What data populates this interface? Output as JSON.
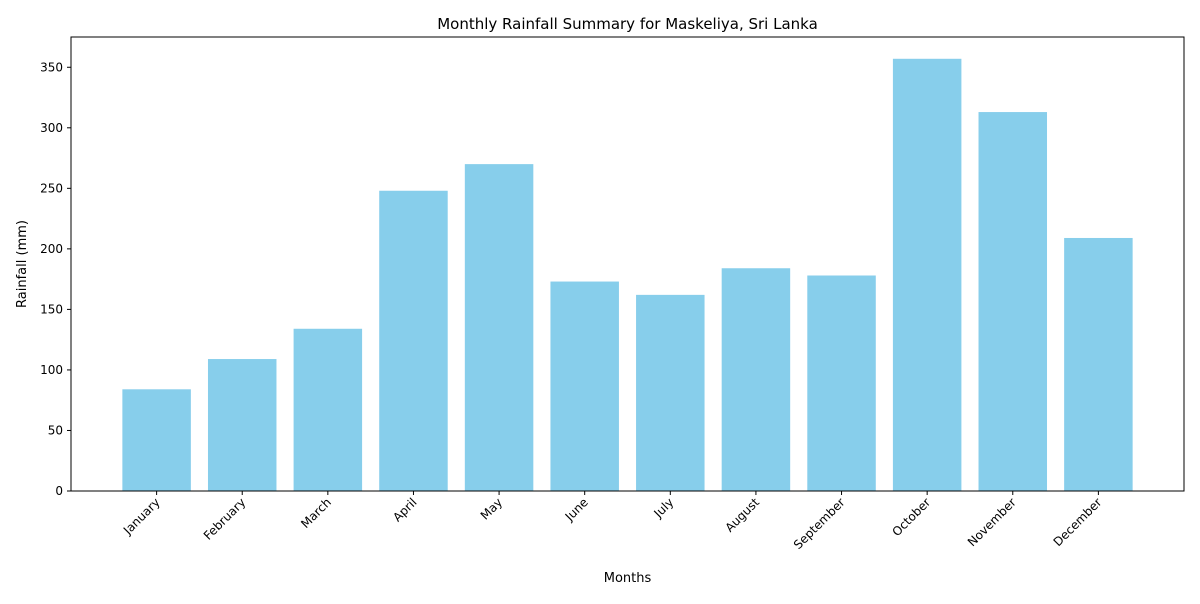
{
  "chart_data": {
    "type": "bar",
    "title": "Monthly Rainfall Summary for Maskeliya, Sri Lanka",
    "xlabel": "Months",
    "ylabel": "Rainfall (mm)",
    "categories": [
      "January",
      "February",
      "March",
      "April",
      "May",
      "June",
      "July",
      "August",
      "September",
      "October",
      "November",
      "December"
    ],
    "values": [
      84,
      109,
      134,
      248,
      270,
      173,
      162,
      184,
      178,
      357,
      313,
      209
    ],
    "ylim": [
      0,
      375
    ],
    "yticks": [
      0,
      50,
      100,
      150,
      200,
      250,
      300,
      350
    ],
    "bar_color": "#87CEEB",
    "grid": false,
    "legend": "none",
    "x_tick_rotation": "45 degrees"
  }
}
